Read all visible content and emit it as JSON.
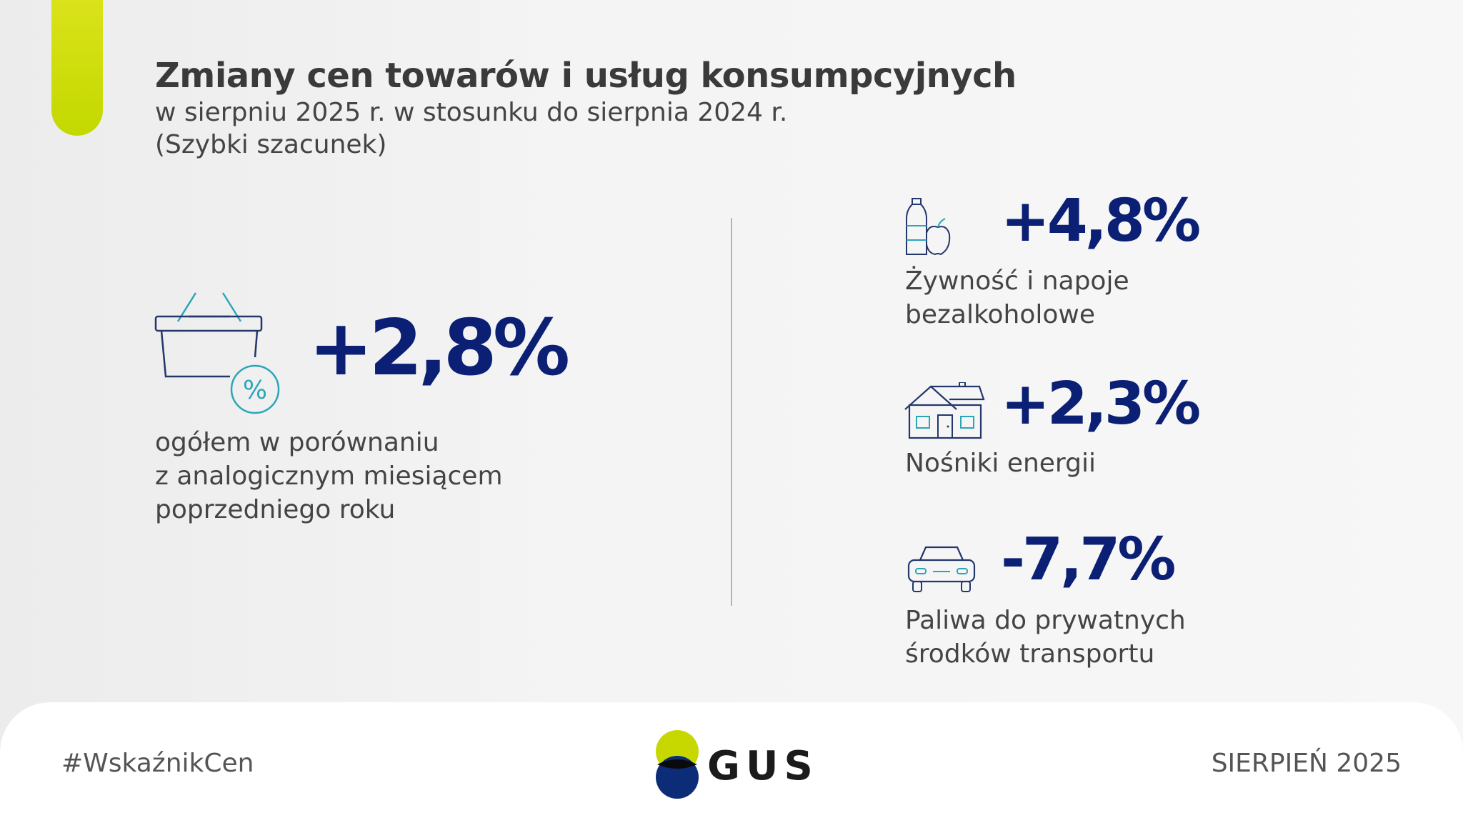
{
  "header": {
    "title": "Zmiany cen towarów i usług konsumpcyjnych",
    "subtitle": "w sierpniu 2025 r. w stosunku do sierpnia 2024 r.",
    "subtitle2": "(Szybki szacunek)"
  },
  "overall": {
    "icon": "shopping-basket-percent-icon",
    "value": "+2,8%",
    "desc_lines": [
      "ogółem w porównaniu",
      "z analogicznym miesiącem",
      "poprzedniego roku"
    ]
  },
  "categories": [
    {
      "icon": "bottle-apple-icon",
      "value": "+4,8%",
      "label_lines": [
        "Żywność i napoje",
        "bezalkoholowe"
      ]
    },
    {
      "icon": "house-icon",
      "value": "+2,3%",
      "label_lines": [
        "Nośniki energii"
      ]
    },
    {
      "icon": "car-icon",
      "value": "-7,7%",
      "label_lines": [
        "Paliwa do prywatnych",
        "środków transportu"
      ]
    }
  ],
  "footer": {
    "hashtag": "#WskaźnikCen",
    "logo_text": "GUS",
    "date": "SIERPIEŃ 2025"
  },
  "colors": {
    "accent": "#c9dc00",
    "value_blue": "#0b2074",
    "icon_teal": "#2ba6b8",
    "icon_navy": "#23376b",
    "logo_green": "#c6d800",
    "logo_navy": "#0d2c78"
  }
}
